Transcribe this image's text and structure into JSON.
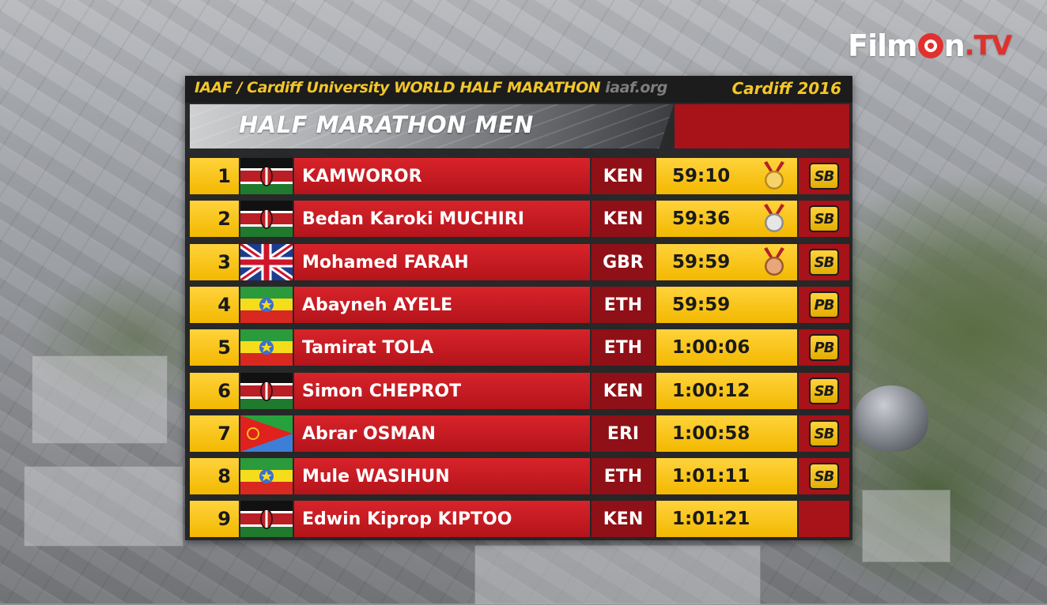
{
  "broadcaster": {
    "logo_text": "FilmOn.TV",
    "brand_color": "#e0312e"
  },
  "header": {
    "event_org": "IAAF",
    "event_name": " / Cardiff University WORLD HALF MARATHON ",
    "site": "iaaf.org",
    "location_year": "Cardiff 2016"
  },
  "title": "HALF MARATHON MEN",
  "colors": {
    "gold": "#f3b800",
    "red": "#c01b22",
    "dark_red": "#8f1016"
  },
  "results": [
    {
      "pos": "1",
      "flag": "KEN",
      "name": "KAMWOROR",
      "nat": "KEN",
      "time": "59:10",
      "medal": "gold",
      "record": "SB"
    },
    {
      "pos": "2",
      "flag": "KEN",
      "name": "Bedan Karoki MUCHIRI",
      "nat": "KEN",
      "time": "59:36",
      "medal": "silver",
      "record": "SB"
    },
    {
      "pos": "3",
      "flag": "GBR",
      "name": "Mohamed FARAH",
      "nat": "GBR",
      "time": "59:59",
      "medal": "bronze",
      "record": "SB"
    },
    {
      "pos": "4",
      "flag": "ETH",
      "name": "Abayneh AYELE",
      "nat": "ETH",
      "time": "59:59",
      "medal": "",
      "record": "PB"
    },
    {
      "pos": "5",
      "flag": "ETH",
      "name": "Tamirat TOLA",
      "nat": "ETH",
      "time": "1:00:06",
      "medal": "",
      "record": "PB"
    },
    {
      "pos": "6",
      "flag": "KEN",
      "name": "Simon CHEPROT",
      "nat": "KEN",
      "time": "1:00:12",
      "medal": "",
      "record": "SB"
    },
    {
      "pos": "7",
      "flag": "ERI",
      "name": "Abrar OSMAN",
      "nat": "ERI",
      "time": "1:00:58",
      "medal": "",
      "record": "SB"
    },
    {
      "pos": "8",
      "flag": "ETH",
      "name": "Mule WASIHUN",
      "nat": "ETH",
      "time": "1:01:11",
      "medal": "",
      "record": "SB"
    },
    {
      "pos": "9",
      "flag": "KEN",
      "name": "Edwin Kiprop KIPTOO",
      "nat": "KEN",
      "time": "1:01:21",
      "medal": "",
      "record": ""
    }
  ]
}
